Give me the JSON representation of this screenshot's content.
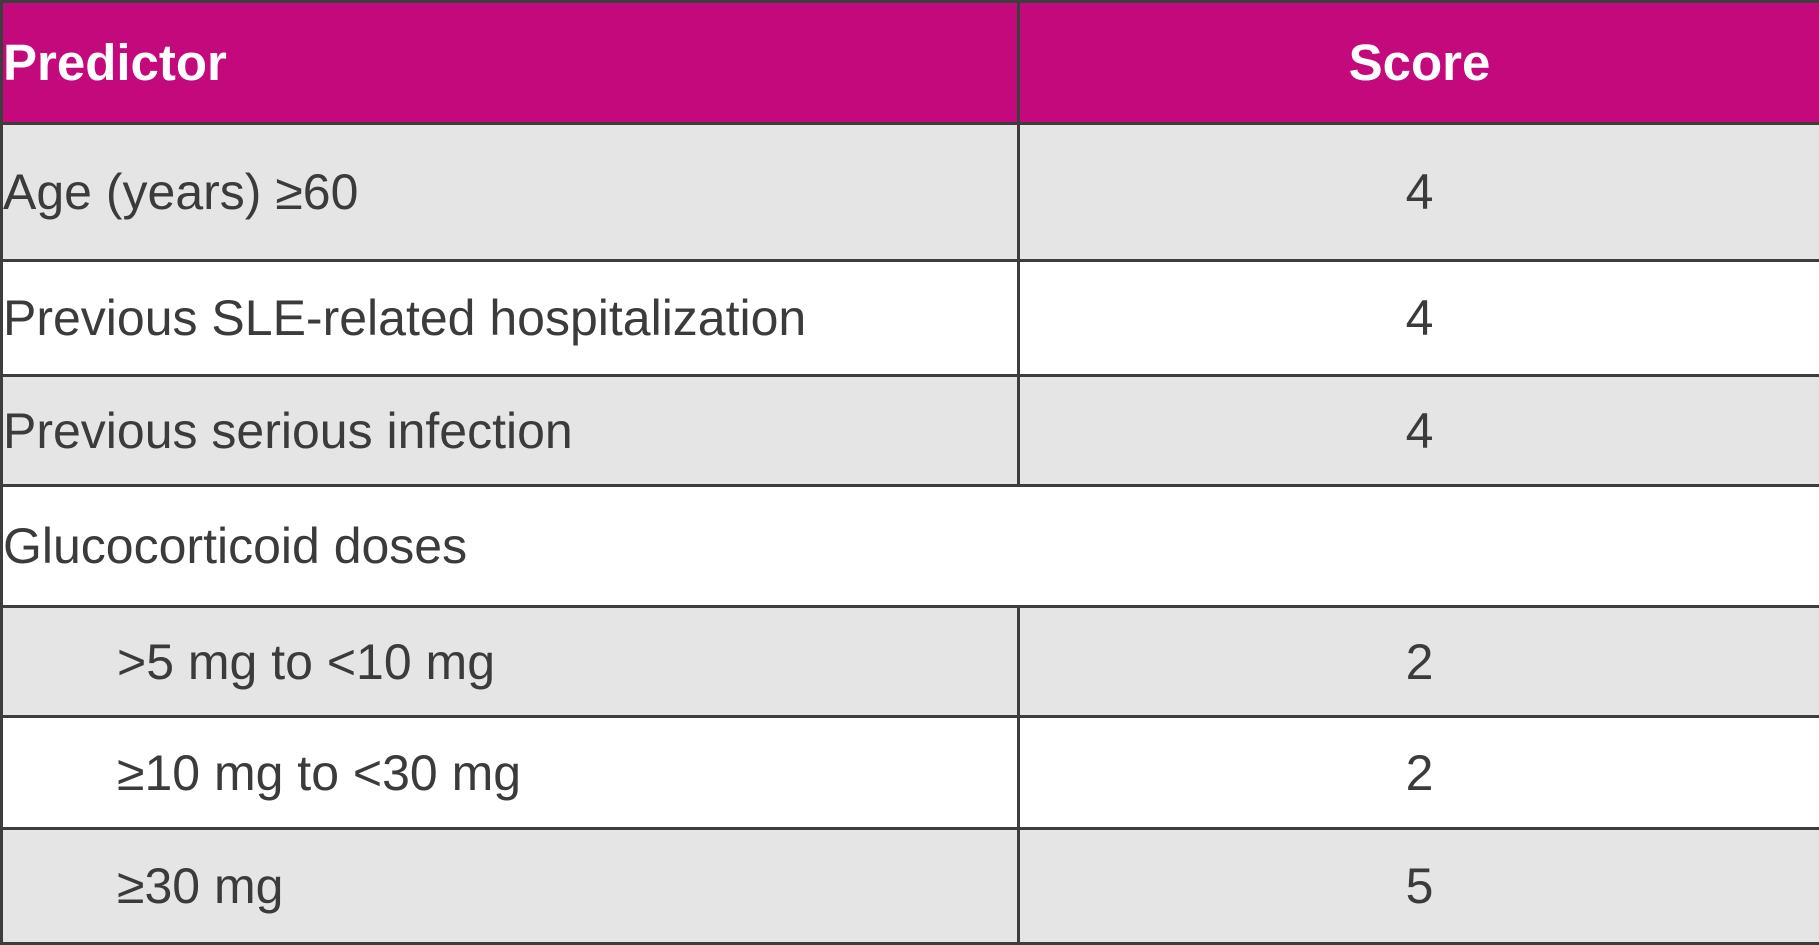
{
  "table": {
    "headers": {
      "predictor": "Predictor",
      "score": "Score"
    },
    "rows": [
      {
        "predictor": "Age (years) ≥60",
        "score": "4"
      },
      {
        "predictor": "Previous SLE-related hospitalization",
        "score": "4"
      },
      {
        "predictor": "Previous serious infection",
        "score": "4"
      },
      {
        "predictor": "Glucocorticoid doses",
        "score": ""
      },
      {
        "predictor": ">5 mg to <10 mg",
        "score": "2"
      },
      {
        "predictor": "≥10 mg to <30 mg",
        "score": "2"
      },
      {
        "predictor": "≥30 mg",
        "score": "5"
      }
    ]
  },
  "colors": {
    "header_bg": "#c4097d",
    "header_text": "#ffffff",
    "shaded_row": "#e6e5e6",
    "plain_row": "#ffffff",
    "border": "#3d3d3d",
    "body_text": "#3b3b3b"
  }
}
